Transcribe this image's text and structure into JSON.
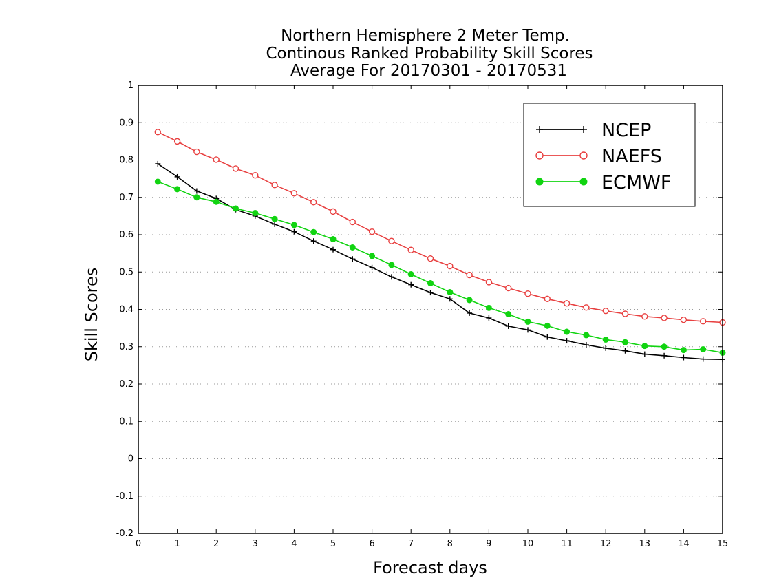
{
  "chart_data": {
    "type": "line",
    "title": [
      "Northern Hemisphere 2 Meter Temp.",
      "Continous Ranked Probability Skill Scores",
      "Average For 20170301 - 20170531"
    ],
    "xlabel": "Forecast days",
    "ylabel": "Skill Scores",
    "xlim": [
      0,
      15
    ],
    "ylim": [
      -0.2,
      1
    ],
    "xticks": [
      0,
      1,
      2,
      3,
      4,
      5,
      6,
      7,
      8,
      9,
      10,
      11,
      12,
      13,
      14,
      15
    ],
    "yticks": [
      -0.2,
      -0.1,
      0,
      0.1,
      0.2,
      0.3,
      0.4,
      0.5,
      0.6,
      0.7,
      0.8,
      0.9,
      1
    ],
    "ytick_labels": [
      "-0.2",
      "-0.1",
      "0",
      "0.1",
      "0.2",
      "0.3",
      "0.4",
      "0.5",
      "0.6",
      "0.7",
      "0.8",
      "0.9",
      "1"
    ],
    "grid": "horizontal-dotted",
    "legend_position": "top-right",
    "x": [
      0.5,
      1,
      1.5,
      2,
      2.5,
      3,
      3.5,
      4,
      4.5,
      5,
      5.5,
      6,
      6.5,
      7,
      7.5,
      8,
      8.5,
      9,
      9.5,
      10,
      10.5,
      11,
      11.5,
      12,
      12.5,
      13,
      13.5,
      14,
      14.5,
      15
    ],
    "series": [
      {
        "name": "NCEP",
        "color": "#000000",
        "marker": "plus",
        "values": [
          0.79,
          0.755,
          0.717,
          0.697,
          0.667,
          0.65,
          0.628,
          0.608,
          0.583,
          0.56,
          0.535,
          0.512,
          0.487,
          0.466,
          0.445,
          0.428,
          0.39,
          0.377,
          0.355,
          0.345,
          0.326,
          0.316,
          0.305,
          0.296,
          0.289,
          0.28,
          0.276,
          0.271,
          0.267,
          0.266
        ]
      },
      {
        "name": "NAEFS",
        "color": "#e84040",
        "marker": "open-circle",
        "values": [
          0.875,
          0.85,
          0.822,
          0.801,
          0.777,
          0.759,
          0.733,
          0.711,
          0.687,
          0.662,
          0.634,
          0.608,
          0.583,
          0.559,
          0.536,
          0.516,
          0.492,
          0.473,
          0.457,
          0.442,
          0.428,
          0.416,
          0.405,
          0.396,
          0.388,
          0.381,
          0.377,
          0.372,
          0.368,
          0.365
        ]
      },
      {
        "name": "ECMWF",
        "color": "#11d411",
        "marker": "filled-circle",
        "values": [
          0.742,
          0.722,
          0.7,
          0.688,
          0.67,
          0.658,
          0.642,
          0.626,
          0.607,
          0.588,
          0.566,
          0.543,
          0.519,
          0.494,
          0.47,
          0.446,
          0.425,
          0.404,
          0.387,
          0.367,
          0.356,
          0.34,
          0.331,
          0.319,
          0.312,
          0.302,
          0.3,
          0.291,
          0.293,
          0.284
        ]
      }
    ]
  }
}
